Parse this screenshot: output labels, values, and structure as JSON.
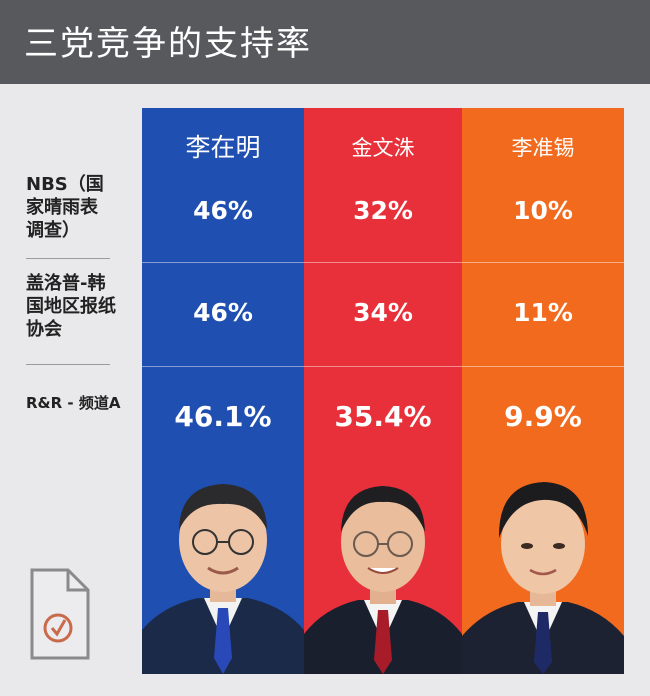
{
  "title": "三党竞争的支持率",
  "chart_data": {
    "type": "table",
    "title": "三党竞争的支持率",
    "columns": [
      {
        "name": "李在明",
        "color": "#1f4fb0"
      },
      {
        "name": "金文洙",
        "color": "#e8303a"
      },
      {
        "name": "李准锡",
        "color": "#f26a1e"
      }
    ],
    "rows": [
      {
        "label": "NBS（国家晴雨表调查）",
        "values": [
          "46%",
          "32%",
          "10%"
        ]
      },
      {
        "label": "盖洛普-韩国地区报纸协会",
        "values": [
          "46%",
          "34%",
          "11%"
        ]
      },
      {
        "label": "R&R - 频道A",
        "values": [
          "46.1%",
          "35.4%",
          "9.9%"
        ]
      }
    ]
  },
  "row_label_lines": [
    [
      "NBS（国",
      "家晴雨表",
      "调查）"
    ],
    [
      "盖洛普-韩",
      "国地区报纸",
      "协会"
    ],
    [
      "R&R - 频道A"
    ]
  ],
  "icons": [
    "ballot-document-icon"
  ]
}
